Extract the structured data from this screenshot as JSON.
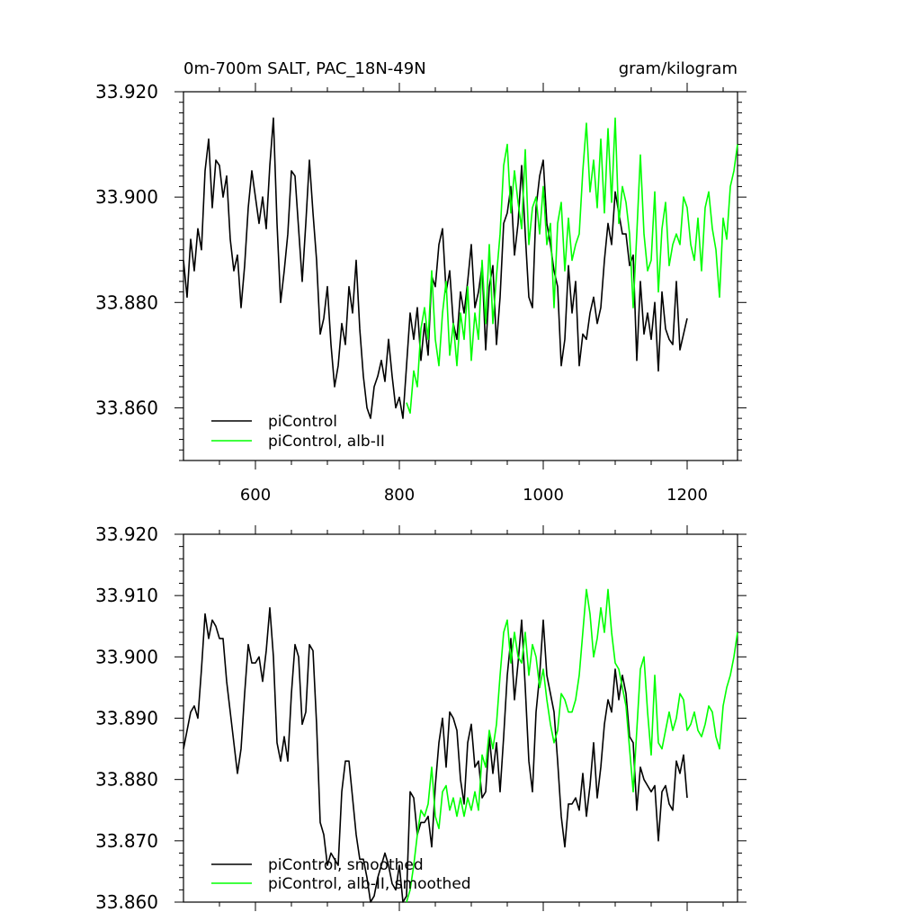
{
  "chart_data": [
    {
      "type": "line",
      "title": "0m-700m SALT, PAC_18N-49N",
      "units": "gram/kilogram",
      "xlim": [
        500,
        1270
      ],
      "ylim": [
        33.85,
        33.92
      ],
      "x_ticks": [
        "600",
        "800",
        "1000",
        "1200"
      ],
      "y_ticks": [
        "33.860",
        "33.880",
        "33.900",
        "33.920"
      ],
      "legend_position": "bottom-left",
      "series": [
        {
          "name": "piControl",
          "color": "#000000",
          "x": [
            500,
            505,
            510,
            515,
            520,
            525,
            530,
            535,
            540,
            545,
            550,
            555,
            560,
            565,
            570,
            575,
            580,
            585,
            590,
            595,
            600,
            605,
            610,
            615,
            620,
            625,
            630,
            635,
            640,
            645,
            650,
            655,
            660,
            665,
            670,
            675,
            680,
            685,
            690,
            695,
            700,
            705,
            710,
            715,
            720,
            725,
            730,
            735,
            740,
            745,
            750,
            755,
            760,
            765,
            770,
            775,
            780,
            785,
            790,
            795,
            800,
            805,
            810,
            815,
            820,
            825,
            830,
            835,
            840,
            845,
            850,
            855,
            860,
            865,
            870,
            875,
            880,
            885,
            890,
            895,
            900,
            905,
            910,
            915,
            920,
            925,
            930,
            935,
            940,
            945,
            950,
            955,
            960,
            965,
            970,
            975,
            980,
            985,
            990,
            995,
            1000,
            1005,
            1010,
            1015,
            1020,
            1025,
            1030,
            1035,
            1040,
            1045,
            1050,
            1055,
            1060,
            1065,
            1070,
            1075,
            1080,
            1085,
            1090,
            1095,
            1100,
            1105,
            1110,
            1115,
            1120,
            1125,
            1130,
            1135,
            1140,
            1145,
            1150,
            1155,
            1160,
            1165,
            1170,
            1175,
            1180,
            1185,
            1190,
            1195,
            1200
          ],
          "y": [
            33.888,
            33.881,
            33.892,
            33.886,
            33.894,
            33.89,
            33.905,
            33.911,
            33.898,
            33.907,
            33.906,
            33.9,
            33.904,
            33.892,
            33.886,
            33.889,
            33.879,
            33.887,
            33.898,
            33.905,
            33.9,
            33.895,
            33.9,
            33.894,
            33.906,
            33.915,
            33.895,
            33.88,
            33.886,
            33.893,
            33.905,
            33.904,
            33.894,
            33.884,
            33.895,
            33.907,
            33.897,
            33.888,
            33.874,
            33.877,
            33.883,
            33.872,
            33.864,
            33.868,
            33.876,
            33.872,
            33.883,
            33.878,
            33.888,
            33.875,
            33.866,
            33.86,
            33.858,
            33.864,
            33.866,
            33.869,
            33.865,
            33.873,
            33.866,
            33.86,
            33.862,
            33.858,
            33.868,
            33.878,
            33.873,
            33.879,
            33.869,
            33.876,
            33.87,
            33.885,
            33.883,
            33.891,
            33.894,
            33.882,
            33.886,
            33.876,
            33.873,
            33.882,
            33.878,
            33.884,
            33.891,
            33.879,
            33.882,
            33.887,
            33.871,
            33.883,
            33.887,
            33.872,
            33.881,
            33.895,
            33.897,
            33.902,
            33.889,
            33.895,
            33.906,
            33.893,
            33.881,
            33.879,
            33.898,
            33.904,
            33.907,
            33.895,
            33.891,
            33.886,
            33.883,
            33.868,
            33.873,
            33.887,
            33.878,
            33.884,
            33.868,
            33.874,
            33.873,
            33.878,
            33.881,
            33.876,
            33.879,
            33.888,
            33.895,
            33.891,
            33.901,
            33.897,
            33.893,
            33.893,
            33.887,
            33.889,
            33.869,
            33.884,
            33.874,
            33.878,
            33.873,
            33.88,
            33.867,
            33.882,
            33.875,
            33.873,
            33.872,
            33.884,
            33.871,
            33.874,
            33.877
          ]
        },
        {
          "name": "piControl, alb-II",
          "color": "#00ff00",
          "x": [
            810,
            815,
            820,
            825,
            830,
            835,
            840,
            845,
            850,
            855,
            860,
            865,
            870,
            875,
            880,
            885,
            890,
            895,
            900,
            905,
            910,
            915,
            920,
            925,
            930,
            935,
            940,
            945,
            950,
            955,
            960,
            965,
            970,
            975,
            980,
            985,
            990,
            995,
            1000,
            1005,
            1010,
            1015,
            1020,
            1025,
            1030,
            1035,
            1040,
            1045,
            1050,
            1055,
            1060,
            1065,
            1070,
            1075,
            1080,
            1085,
            1090,
            1095,
            1100,
            1105,
            1110,
            1115,
            1120,
            1125,
            1130,
            1135,
            1140,
            1145,
            1150,
            1155,
            1160,
            1165,
            1170,
            1175,
            1180,
            1185,
            1190,
            1195,
            1200,
            1205,
            1210,
            1215,
            1220,
            1225,
            1230,
            1235,
            1240,
            1245,
            1250,
            1255,
            1260,
            1265,
            1270
          ],
          "y": [
            33.861,
            33.859,
            33.867,
            33.864,
            33.875,
            33.879,
            33.873,
            33.886,
            33.873,
            33.868,
            33.878,
            33.884,
            33.87,
            33.876,
            33.868,
            33.878,
            33.873,
            33.883,
            33.869,
            33.878,
            33.873,
            33.888,
            33.876,
            33.891,
            33.876,
            33.885,
            33.893,
            33.906,
            33.91,
            33.897,
            33.905,
            33.899,
            33.894,
            33.909,
            33.891,
            33.898,
            33.9,
            33.893,
            33.902,
            33.891,
            33.895,
            33.879,
            33.895,
            33.899,
            33.886,
            33.896,
            33.888,
            33.891,
            33.893,
            33.905,
            33.914,
            33.901,
            33.907,
            33.898,
            33.911,
            33.897,
            33.913,
            33.899,
            33.915,
            33.895,
            33.902,
            33.899,
            33.893,
            33.879,
            33.893,
            33.908,
            33.893,
            33.886,
            33.888,
            33.901,
            33.882,
            33.894,
            33.899,
            33.887,
            33.891,
            33.893,
            33.891,
            33.9,
            33.898,
            33.891,
            33.888,
            33.896,
            33.886,
            33.898,
            33.901,
            33.894,
            33.89,
            33.881,
            33.896,
            33.892,
            33.902,
            33.905,
            33.91
          ]
        }
      ]
    },
    {
      "type": "line",
      "xlim": [
        500,
        1270
      ],
      "ylim": [
        33.86,
        33.92
      ],
      "x_ticks": [
        "",
        "",
        "",
        ""
      ],
      "y_ticks": [
        "33.860",
        "33.870",
        "33.880",
        "33.890",
        "33.900",
        "33.910",
        "33.920"
      ],
      "legend_position": "bottom-left",
      "series": [
        {
          "name": "piControl, smoothed",
          "color": "#000000",
          "x": [
            500,
            505,
            510,
            515,
            520,
            525,
            530,
            535,
            540,
            545,
            550,
            555,
            560,
            565,
            570,
            575,
            580,
            585,
            590,
            595,
            600,
            605,
            610,
            615,
            620,
            625,
            630,
            635,
            640,
            645,
            650,
            655,
            660,
            665,
            670,
            675,
            680,
            685,
            690,
            695,
            700,
            705,
            710,
            715,
            720,
            725,
            730,
            735,
            740,
            745,
            750,
            755,
            760,
            765,
            770,
            775,
            780,
            785,
            790,
            795,
            800,
            805,
            810,
            815,
            820,
            825,
            830,
            835,
            840,
            845,
            850,
            855,
            860,
            865,
            870,
            875,
            880,
            885,
            890,
            895,
            900,
            905,
            910,
            915,
            920,
            925,
            930,
            935,
            940,
            945,
            950,
            955,
            960,
            965,
            970,
            975,
            980,
            985,
            990,
            995,
            1000,
            1005,
            1010,
            1015,
            1020,
            1025,
            1030,
            1035,
            1040,
            1045,
            1050,
            1055,
            1060,
            1065,
            1070,
            1075,
            1080,
            1085,
            1090,
            1095,
            1100,
            1105,
            1110,
            1115,
            1120,
            1125,
            1130,
            1135,
            1140,
            1145,
            1150,
            1155,
            1160,
            1165,
            1170,
            1175,
            1180,
            1185,
            1190,
            1195,
            1200
          ],
          "y": [
            33.885,
            33.888,
            33.891,
            33.892,
            33.89,
            33.898,
            33.907,
            33.903,
            33.906,
            33.905,
            33.903,
            33.903,
            33.896,
            33.891,
            33.886,
            33.881,
            33.885,
            33.894,
            33.902,
            33.899,
            33.899,
            33.9,
            33.896,
            33.901,
            33.908,
            33.9,
            33.886,
            33.883,
            33.887,
            33.883,
            33.894,
            33.902,
            33.9,
            33.889,
            33.891,
            33.902,
            33.901,
            33.889,
            33.873,
            33.871,
            33.866,
            33.868,
            33.867,
            33.866,
            33.878,
            33.883,
            33.883,
            33.877,
            33.871,
            33.867,
            33.867,
            33.864,
            33.86,
            33.861,
            33.864,
            33.866,
            33.868,
            33.866,
            33.863,
            33.862,
            33.866,
            33.86,
            33.861,
            33.878,
            33.877,
            33.871,
            33.873,
            33.873,
            33.874,
            33.869,
            33.879,
            33.886,
            33.89,
            33.882,
            33.891,
            33.89,
            33.888,
            33.88,
            33.876,
            33.886,
            33.889,
            33.882,
            33.883,
            33.877,
            33.878,
            33.887,
            33.881,
            33.886,
            33.878,
            33.887,
            33.897,
            33.903,
            33.893,
            33.899,
            33.906,
            33.895,
            33.883,
            33.878,
            33.891,
            33.897,
            33.906,
            33.897,
            33.894,
            33.891,
            33.883,
            33.874,
            33.869,
            33.876,
            33.876,
            33.877,
            33.875,
            33.881,
            33.874,
            33.879,
            33.886,
            33.877,
            33.882,
            33.889,
            33.893,
            33.891,
            33.898,
            33.893,
            33.897,
            33.894,
            33.887,
            33.886,
            33.875,
            33.882,
            33.88,
            33.879,
            33.878,
            33.879,
            33.87,
            33.878,
            33.879,
            33.876,
            33.875,
            33.883,
            33.881,
            33.884,
            33.877
          ]
        },
        {
          "name": "piControl, alb-II, smoothed",
          "color": "#00ff00",
          "x": [
            810,
            815,
            820,
            825,
            830,
            835,
            840,
            845,
            850,
            855,
            860,
            865,
            870,
            875,
            880,
            885,
            890,
            895,
            900,
            905,
            910,
            915,
            920,
            925,
            930,
            935,
            940,
            945,
            950,
            955,
            960,
            965,
            970,
            975,
            980,
            985,
            990,
            995,
            1000,
            1005,
            1010,
            1015,
            1020,
            1025,
            1030,
            1035,
            1040,
            1045,
            1050,
            1055,
            1060,
            1065,
            1070,
            1075,
            1080,
            1085,
            1090,
            1095,
            1100,
            1105,
            1110,
            1115,
            1120,
            1125,
            1130,
            1135,
            1140,
            1145,
            1150,
            1155,
            1160,
            1165,
            1170,
            1175,
            1180,
            1185,
            1190,
            1195,
            1200,
            1205,
            1210,
            1215,
            1220,
            1225,
            1230,
            1235,
            1240,
            1245,
            1250,
            1255,
            1260,
            1265,
            1270
          ],
          "y": [
            33.86,
            33.862,
            33.866,
            33.871,
            33.875,
            33.874,
            33.876,
            33.882,
            33.874,
            33.872,
            33.878,
            33.879,
            33.875,
            33.877,
            33.874,
            33.877,
            33.874,
            33.877,
            33.875,
            33.878,
            33.875,
            33.884,
            33.882,
            33.888,
            33.885,
            33.889,
            33.897,
            33.904,
            33.906,
            33.899,
            33.904,
            33.9,
            33.899,
            33.904,
            33.897,
            33.902,
            33.9,
            33.895,
            33.898,
            33.893,
            33.889,
            33.886,
            33.888,
            33.894,
            33.893,
            33.891,
            33.891,
            33.893,
            33.897,
            33.904,
            33.911,
            33.907,
            33.9,
            33.903,
            33.908,
            33.904,
            33.911,
            33.904,
            33.899,
            33.898,
            33.895,
            33.892,
            33.885,
            33.878,
            33.888,
            33.898,
            33.9,
            33.891,
            33.884,
            33.897,
            33.886,
            33.885,
            33.888,
            33.891,
            33.888,
            33.89,
            33.894,
            33.893,
            33.888,
            33.889,
            33.891,
            33.888,
            33.887,
            33.889,
            33.892,
            33.891,
            33.887,
            33.885,
            33.892,
            33.895,
            33.897,
            33.9,
            33.904
          ]
        }
      ]
    }
  ]
}
